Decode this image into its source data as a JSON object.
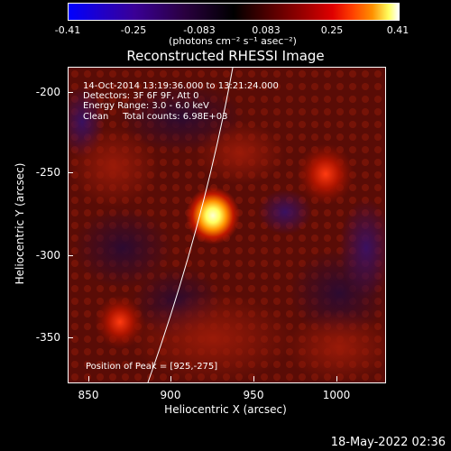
{
  "colorbar": {
    "ticks": [
      "-0.41",
      "-0.25",
      "-0.083",
      "0.083",
      "0.25",
      "0.41"
    ],
    "units": "(photons cm⁻² s⁻¹ asec⁻²)"
  },
  "title": "Reconstructed RHESSI Image",
  "annotations": {
    "time_range": "14-Oct-2014 13:19:36.000 to 13:21:24.000",
    "detectors": "Detectors: 3F 6F 9F, Att 0",
    "energy": "Energy Range: 3.0 - 6.0 keV",
    "clean": "Clean     Total counts: 6.98E+03",
    "peak": "Position of Peak = [925,-275]"
  },
  "axes": {
    "ylabel": "Heliocentric  Y (arcsec)",
    "xlabel": "Heliocentric  X (arcsec)",
    "yticks": [
      "-200",
      "-250",
      "-300",
      "-350"
    ],
    "xticks": [
      "850",
      "900",
      "950",
      "1000"
    ]
  },
  "footer": {
    "date": "18-May-2022 02:36"
  },
  "colors": {
    "peak": "#ffffc8",
    "limb": "#ffffff"
  }
}
